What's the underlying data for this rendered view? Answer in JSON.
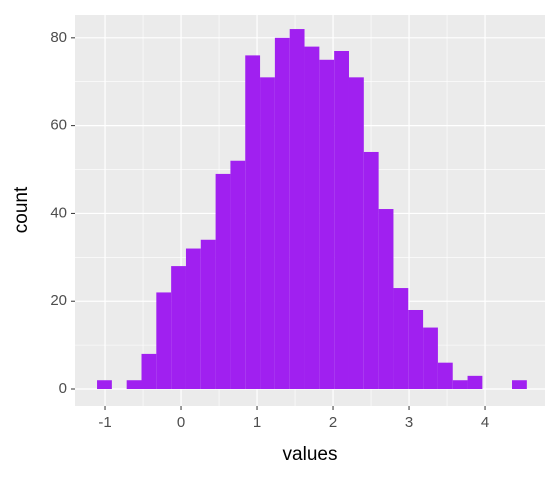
{
  "chart_data": {
    "type": "histogram",
    "x_label": "values",
    "y_label": "count",
    "bins": [
      -1.105,
      -0.91,
      -0.715,
      -0.52,
      -0.325,
      -0.13,
      0.065,
      0.26,
      0.455,
      0.65,
      0.845,
      1.04,
      1.235,
      1.43,
      1.625,
      1.82,
      2.015,
      2.21,
      2.405,
      2.6,
      2.795,
      2.99,
      3.185,
      3.38,
      3.575,
      3.77,
      3.965,
      4.16,
      4.355,
      4.55
    ],
    "values": [
      2,
      0,
      2,
      8,
      22,
      28,
      32,
      34,
      49,
      52,
      76,
      71,
      80,
      82,
      78,
      75,
      77,
      71,
      54,
      41,
      23,
      18,
      14,
      6,
      2,
      3,
      0,
      0,
      2
    ],
    "color": "#a020f0",
    "xlim": [
      -1.395,
      4.789
    ],
    "ylim": [
      -3.87,
      85.2
    ],
    "xticks": [
      -1,
      0,
      1,
      2,
      3,
      4
    ],
    "yticks": [
      0,
      20,
      40,
      60,
      80
    ],
    "grid": true
  }
}
